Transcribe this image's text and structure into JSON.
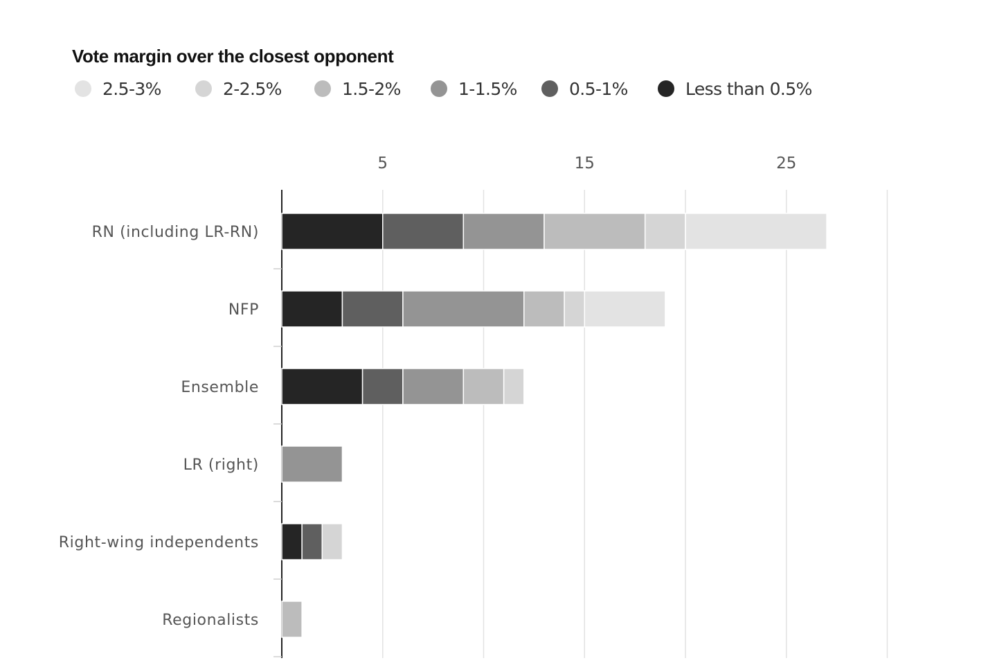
{
  "legend": {
    "title": "Vote margin over the closest opponent",
    "items": [
      {
        "label": "2.5-3%",
        "color": "#e3e3e3"
      },
      {
        "label": "2-2.5%",
        "color": "#d5d5d5"
      },
      {
        "label": "1.5-2%",
        "color": "#bcbcbc"
      },
      {
        "label": "1-1.5%",
        "color": "#949494"
      },
      {
        "label": "0.5-1%",
        "color": "#5f5f5f"
      },
      {
        "label": "Less than 0.5%",
        "color": "#252525"
      }
    ]
  },
  "chart_data": {
    "type": "bar",
    "orientation": "horizontal",
    "stacked": true,
    "title": "",
    "xlabel": "",
    "ylabel": "",
    "categories": [
      "RN (including LR-RN)",
      "NFP",
      "Ensemble",
      "LR (right)",
      "Right-wing independents",
      "Regionalists"
    ],
    "xlim": [
      0,
      30
    ],
    "xticks": [
      5,
      15,
      25
    ],
    "grid_lines": [
      0,
      5,
      10,
      15,
      20,
      25,
      30
    ],
    "grid": true,
    "legend_position": "top",
    "series": [
      {
        "name": "Less than 0.5%",
        "color": "#252525",
        "values": [
          5,
          3,
          4,
          0,
          1,
          0
        ]
      },
      {
        "name": "0.5-1%",
        "color": "#5f5f5f",
        "values": [
          4,
          3,
          2,
          0,
          1,
          0
        ]
      },
      {
        "name": "1-1.5%",
        "color": "#949494",
        "values": [
          4,
          6,
          3,
          3,
          0,
          0
        ]
      },
      {
        "name": "1.5-2%",
        "color": "#bcbcbc",
        "values": [
          5,
          2,
          2,
          0,
          0,
          1
        ]
      },
      {
        "name": "2-2.5%",
        "color": "#d5d5d5",
        "values": [
          2,
          1,
          1,
          0,
          1,
          0
        ]
      },
      {
        "name": "2.5-3%",
        "color": "#e3e3e3",
        "values": [
          7,
          4,
          0,
          0,
          0,
          0
        ]
      }
    ]
  }
}
